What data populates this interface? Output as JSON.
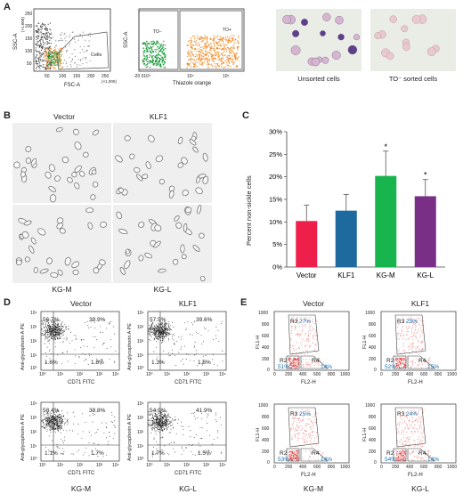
{
  "panels": {
    "A": "A",
    "B": "B",
    "C": "C",
    "D": "D",
    "E": "E"
  },
  "panelA": {
    "plot1": {
      "y_label": "SSC-A",
      "y_mult": "(×1,000)",
      "x_label": "FSC-A",
      "x_mult": "(×1,000)",
      "y_ticks": [
        "250",
        "200",
        "150",
        "100",
        "50"
      ],
      "x_ticks": [
        "50",
        "100",
        "150",
        "200",
        "250"
      ],
      "gate_label": "Cells"
    },
    "plot2": {
      "y_label": "SSC-A",
      "y_mult": "(×1,000)",
      "x_label": "Thiazole orange",
      "y_ticks": [
        "250",
        "200",
        "150",
        "100",
        "50"
      ],
      "x_ticks": [
        "-20 010³",
        "10⁴",
        "10⁵"
      ],
      "gate_neg": "TO−",
      "gate_pos": "TO+"
    },
    "micro1_caption": "Unsorted cells",
    "micro2_caption": "TO⁻ sorted cells"
  },
  "panelB": {
    "titles": [
      "Vector",
      "KLF1",
      "KG-M",
      "KG-L"
    ]
  },
  "chart_data": {
    "type": "bar",
    "categories": [
      "Vector",
      "KLF1",
      "KG-M",
      "KG-L"
    ],
    "values": [
      10.2,
      12.5,
      20.2,
      15.7
    ],
    "errors": [
      3.5,
      3.6,
      5.5,
      3.7
    ],
    "significance": [
      "",
      "",
      "*",
      "*"
    ],
    "colors": [
      "#ee1f4b",
      "#1e6a9e",
      "#18b54f",
      "#7a2f86"
    ],
    "ylabel": "Percent non-sickle cells",
    "ylim": [
      0,
      30
    ],
    "yticks": [
      "0%",
      "5%",
      "10%",
      "15%",
      "20%",
      "25%",
      "30%"
    ]
  },
  "panelD": {
    "y_label": "Anti-glycophorin A PE",
    "x_label": "CD71 FITC",
    "y_ticks": [
      "10⁴",
      "10³",
      "10²",
      "10¹",
      "10⁰"
    ],
    "x_ticks": [
      "10⁰",
      "10¹",
      "10²",
      "10³",
      "10⁴"
    ],
    "plots": [
      {
        "title": "Vector",
        "ul": "56.7%",
        "ur": "39.9%",
        "ll": "1.6%",
        "lr": "1.8%"
      },
      {
        "title": "KLF1",
        "ul": "57.5%",
        "ur": "39.6%",
        "ll": "1.3%",
        "lr": "1.6%"
      },
      {
        "title": "KG-M",
        "ul": "58.4%",
        "ur": "38.8%",
        "ll": "1.1%",
        "lr": "1.7%"
      },
      {
        "title": "KG-L",
        "ul": "54.9%",
        "ur": "41.9%",
        "ll": "1.7%",
        "lr": "1.5%"
      }
    ]
  },
  "panelE": {
    "y_label": "FL1-H",
    "x_label": "FL2-H",
    "y_ticks": [
      "1000",
      "800",
      "600",
      "400",
      "200",
      "0"
    ],
    "x_ticks": [
      "0",
      "200",
      "400",
      "600",
      "800",
      "1000"
    ],
    "plots": [
      {
        "title": "Vector",
        "r3": "R3",
        "r3v": "27%",
        "r2": "R2",
        "r2v": "51%",
        "r4": "R4",
        "r4v": "14%"
      },
      {
        "title": "KLF1",
        "r3": "R3",
        "r3v": "25%",
        "r2": "R2",
        "r2v": "52%",
        "r4": "R4",
        "r4v": "15%"
      },
      {
        "title": "KG-M",
        "r3": "R3",
        "r3v": "25%",
        "r2": "R2",
        "r2v": "53%",
        "r4": "R4",
        "r4v": "14%"
      },
      {
        "title": "KG-L",
        "r3": "R3",
        "r3v": "24%",
        "r2": "R2",
        "r2v": "54%",
        "r4": "R4",
        "r4v": "14%"
      }
    ]
  },
  "colors": {
    "orange": "#f28c28",
    "green": "#1a9a3a",
    "pink": "#f08b8b",
    "gate_blue": "#1a6fb0"
  }
}
